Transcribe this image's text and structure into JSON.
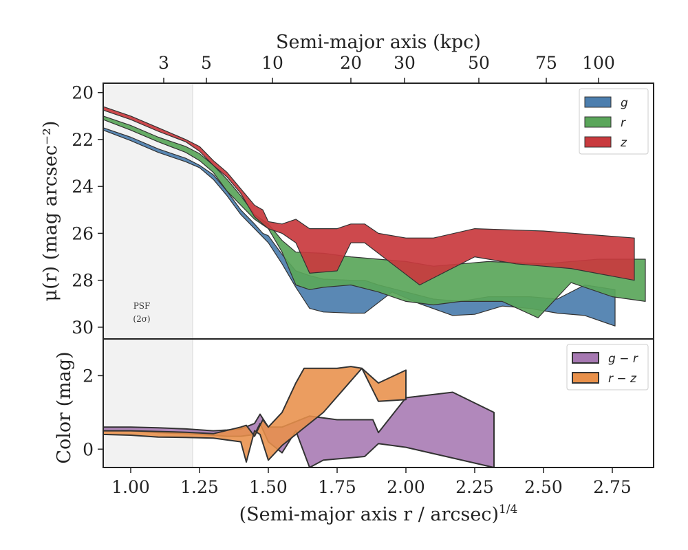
{
  "chart_data": [
    {
      "type": "area",
      "panel": "top",
      "ylabel": "μ(r) (mag arcsec⁻²)",
      "top_axis_label": "Semi-major axis (kpc)",
      "top_ticks": [
        "3",
        "5",
        "10",
        "20",
        "30",
        "50",
        "75",
        "100"
      ],
      "top_tick_kpc": [
        3,
        5,
        10,
        20,
        30,
        50,
        75,
        100
      ],
      "yticks": [
        20,
        22,
        24,
        26,
        28,
        30
      ],
      "ylim": [
        30.5,
        19.6
      ],
      "xlim": [
        0.9,
        2.9
      ],
      "legend_position": "top-right",
      "psf_band": {
        "x_end": 1.225,
        "label_line1": "PSF",
        "label_line2": "(2σ)"
      },
      "series": [
        {
          "name": "g",
          "color": "#4c7eae",
          "upper": [
            [
              0.9,
              21.5
            ],
            [
              1.0,
              21.9
            ],
            [
              1.1,
              22.4
            ],
            [
              1.2,
              22.8
            ],
            [
              1.25,
              23.1
            ],
            [
              1.3,
              23.5
            ],
            [
              1.35,
              24.2
            ],
            [
              1.4,
              25.0
            ],
            [
              1.45,
              25.6
            ],
            [
              1.48,
              26.0
            ],
            [
              1.5,
              26.1
            ],
            [
              1.55,
              26.9
            ],
            [
              1.6,
              27.6
            ],
            [
              1.65,
              27.8
            ],
            [
              1.7,
              27.95
            ],
            [
              1.8,
              28.0
            ],
            [
              1.85,
              28.0
            ],
            [
              1.9,
              28.2
            ],
            [
              2.0,
              28.5
            ],
            [
              2.1,
              28.8
            ],
            [
              2.2,
              28.9
            ],
            [
              2.3,
              28.7
            ],
            [
              2.45,
              28.7
            ],
            [
              2.55,
              28.8
            ],
            [
              2.65,
              28.2
            ],
            [
              2.76,
              28.4
            ]
          ],
          "lower": [
            [
              2.76,
              29.95
            ],
            [
              2.65,
              29.5
            ],
            [
              2.55,
              29.4
            ],
            [
              2.45,
              29.2
            ],
            [
              2.35,
              29.1
            ],
            [
              2.25,
              29.45
            ],
            [
              2.17,
              29.5
            ],
            [
              2.05,
              29.0
            ],
            [
              1.95,
              28.5
            ],
            [
              1.85,
              29.4
            ],
            [
              1.8,
              29.4
            ],
            [
              1.7,
              29.35
            ],
            [
              1.65,
              29.2
            ],
            [
              1.6,
              28.3
            ],
            [
              1.55,
              27.3
            ],
            [
              1.5,
              26.4
            ],
            [
              1.45,
              25.8
            ],
            [
              1.4,
              25.2
            ],
            [
              1.35,
              24.4
            ],
            [
              1.3,
              23.7
            ],
            [
              1.25,
              23.2
            ],
            [
              1.2,
              22.95
            ],
            [
              1.1,
              22.55
            ],
            [
              1.0,
              22.05
            ],
            [
              0.9,
              21.6
            ]
          ]
        },
        {
          "name": "r",
          "color": "#5aa65a",
          "upper": [
            [
              0.9,
              21.0
            ],
            [
              1.0,
              21.4
            ],
            [
              1.1,
              21.9
            ],
            [
              1.2,
              22.3
            ],
            [
              1.25,
              22.6
            ],
            [
              1.3,
              23.1
            ],
            [
              1.35,
              23.7
            ],
            [
              1.4,
              24.4
            ],
            [
              1.45,
              25.2
            ],
            [
              1.5,
              25.6
            ],
            [
              1.55,
              26.3
            ],
            [
              1.6,
              26.8
            ],
            [
              1.7,
              26.85
            ],
            [
              1.8,
              27.0
            ],
            [
              1.9,
              27.1
            ],
            [
              2.0,
              27.2
            ],
            [
              2.1,
              27.4
            ],
            [
              2.2,
              27.3
            ],
            [
              2.3,
              27.2
            ],
            [
              2.5,
              27.3
            ],
            [
              2.7,
              27.1
            ],
            [
              2.87,
              27.1
            ]
          ],
          "lower": [
            [
              2.87,
              28.9
            ],
            [
              2.75,
              28.7
            ],
            [
              2.6,
              28.1
            ],
            [
              2.48,
              29.6
            ],
            [
              2.35,
              28.9
            ],
            [
              2.2,
              28.9
            ],
            [
              2.1,
              29.05
            ],
            [
              2.0,
              28.9
            ],
            [
              1.9,
              28.5
            ],
            [
              1.8,
              28.2
            ],
            [
              1.7,
              28.3
            ],
            [
              1.65,
              28.4
            ],
            [
              1.6,
              28.2
            ],
            [
              1.55,
              26.8
            ],
            [
              1.5,
              25.8
            ],
            [
              1.45,
              25.4
            ],
            [
              1.4,
              24.8
            ],
            [
              1.35,
              24.2
            ],
            [
              1.3,
              23.4
            ],
            [
              1.25,
              22.9
            ],
            [
              1.2,
              22.55
            ],
            [
              1.1,
              22.1
            ],
            [
              1.0,
              21.6
            ],
            [
              0.9,
              21.15
            ]
          ]
        },
        {
          "name": "z",
          "color": "#c93a3e",
          "upper": [
            [
              0.9,
              20.6
            ],
            [
              1.0,
              21.0
            ],
            [
              1.1,
              21.5
            ],
            [
              1.2,
              22.0
            ],
            [
              1.25,
              22.3
            ],
            [
              1.3,
              22.9
            ],
            [
              1.35,
              23.4
            ],
            [
              1.4,
              24.1
            ],
            [
              1.45,
              24.8
            ],
            [
              1.48,
              25.0
            ],
            [
              1.5,
              25.5
            ],
            [
              1.55,
              25.6
            ],
            [
              1.6,
              25.4
            ],
            [
              1.65,
              25.8
            ],
            [
              1.75,
              25.8
            ],
            [
              1.8,
              25.6
            ],
            [
              1.85,
              25.6
            ],
            [
              1.9,
              26.0
            ],
            [
              2.0,
              26.2
            ],
            [
              2.1,
              26.2
            ],
            [
              2.25,
              25.8
            ],
            [
              2.5,
              25.9
            ],
            [
              2.83,
              26.2
            ]
          ],
          "lower": [
            [
              2.83,
              28.0
            ],
            [
              2.6,
              27.5
            ],
            [
              2.4,
              27.3
            ],
            [
              2.25,
              27.0
            ],
            [
              2.05,
              28.2
            ],
            [
              1.95,
              27.3
            ],
            [
              1.85,
              26.4
            ],
            [
              1.8,
              26.4
            ],
            [
              1.75,
              27.6
            ],
            [
              1.65,
              27.7
            ],
            [
              1.6,
              26.4
            ],
            [
              1.55,
              26.0
            ],
            [
              1.5,
              25.8
            ],
            [
              1.45,
              25.3
            ],
            [
              1.4,
              24.3
            ],
            [
              1.35,
              23.6
            ],
            [
              1.3,
              23.1
            ],
            [
              1.25,
              22.5
            ],
            [
              1.2,
              22.1
            ],
            [
              1.1,
              21.65
            ],
            [
              1.0,
              21.15
            ],
            [
              0.9,
              20.75
            ]
          ]
        }
      ]
    },
    {
      "type": "area",
      "panel": "bottom",
      "ylabel": "Color (mag)",
      "xlabel": "(Semi-major axis r / arcsec)",
      "xlabel_sup": "1/4",
      "xticks": [
        "1.00",
        "1.25",
        "1.50",
        "1.75",
        "2.00",
        "2.25",
        "2.50",
        "2.75"
      ],
      "xtick_values": [
        1.0,
        1.25,
        1.5,
        1.75,
        2.0,
        2.25,
        2.5,
        2.75
      ],
      "yticks": [
        0,
        2
      ],
      "ylim": [
        -0.5,
        3.0
      ],
      "xlim": [
        0.9,
        2.9
      ],
      "legend_position": "top-right",
      "series": [
        {
          "name": "g − r",
          "color": "#a678b2",
          "upper": [
            [
              0.9,
              0.6
            ],
            [
              1.0,
              0.6
            ],
            [
              1.1,
              0.58
            ],
            [
              1.2,
              0.55
            ],
            [
              1.3,
              0.5
            ],
            [
              1.35,
              0.52
            ],
            [
              1.4,
              0.55
            ],
            [
              1.45,
              0.7
            ],
            [
              1.47,
              0.95
            ],
            [
              1.5,
              0.6
            ],
            [
              1.55,
              0.6
            ],
            [
              1.6,
              0.75
            ],
            [
              1.65,
              0.9
            ],
            [
              1.7,
              0.85
            ],
            [
              1.75,
              0.8
            ],
            [
              1.8,
              0.8
            ],
            [
              1.85,
              0.8
            ],
            [
              1.88,
              0.8
            ],
            [
              1.9,
              0.45
            ],
            [
              2.0,
              1.4
            ],
            [
              2.17,
              1.55
            ],
            [
              2.32,
              1.0
            ]
          ],
          "lower": [
            [
              2.32,
              -0.5
            ],
            [
              2.0,
              0.05
            ],
            [
              1.9,
              0.15
            ],
            [
              1.85,
              -0.2
            ],
            [
              1.7,
              -0.3
            ],
            [
              1.65,
              -0.5
            ],
            [
              1.6,
              0.5
            ],
            [
              1.55,
              -0.1
            ],
            [
              1.5,
              0.2
            ],
            [
              1.47,
              0.7
            ],
            [
              1.45,
              0.4
            ],
            [
              1.4,
              0.35
            ],
            [
              1.35,
              0.35
            ],
            [
              1.3,
              0.38
            ],
            [
              1.2,
              0.42
            ],
            [
              1.1,
              0.45
            ],
            [
              1.0,
              0.5
            ],
            [
              0.9,
              0.5
            ]
          ]
        },
        {
          "name": "r − z",
          "color": "#e8904a",
          "upper": [
            [
              0.9,
              0.5
            ],
            [
              1.0,
              0.5
            ],
            [
              1.1,
              0.48
            ],
            [
              1.2,
              0.46
            ],
            [
              1.3,
              0.42
            ],
            [
              1.4,
              0.6
            ],
            [
              1.42,
              0.65
            ],
            [
              1.45,
              0.35
            ],
            [
              1.48,
              0.8
            ],
            [
              1.5,
              0.6
            ],
            [
              1.55,
              1.0
            ],
            [
              1.6,
              1.8
            ],
            [
              1.63,
              2.2
            ],
            [
              1.75,
              2.2
            ],
            [
              1.8,
              2.25
            ],
            [
              1.84,
              2.2
            ],
            [
              1.9,
              1.8
            ],
            [
              2.0,
              2.15
            ]
          ],
          "lower": [
            [
              2.0,
              1.35
            ],
            [
              1.9,
              1.3
            ],
            [
              1.84,
              2.2
            ],
            [
              1.7,
              1.0
            ],
            [
              1.6,
              0.4
            ],
            [
              1.55,
              0.1
            ],
            [
              1.5,
              -0.3
            ],
            [
              1.47,
              0.4
            ],
            [
              1.45,
              0.5
            ],
            [
              1.42,
              -0.35
            ],
            [
              1.4,
              0.2
            ],
            [
              1.3,
              0.3
            ],
            [
              1.2,
              0.32
            ],
            [
              1.1,
              0.33
            ],
            [
              1.0,
              0.38
            ],
            [
              0.9,
              0.4
            ]
          ]
        }
      ]
    }
  ]
}
